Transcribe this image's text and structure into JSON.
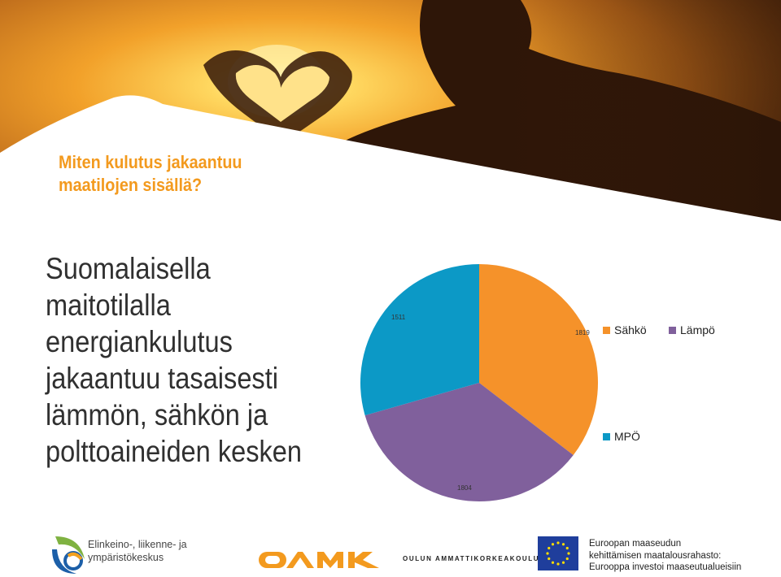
{
  "slide": {
    "heading": [
      "Miten kulutus jakaantuu",
      "maatilojen sisällä?"
    ],
    "body": [
      "Suomalaisella",
      "maitotilalla",
      "energiankulutus",
      "jakaantuu tasaisesti",
      "lämmön, sähkön ja",
      "polttoaineiden kesken"
    ]
  },
  "colors": {
    "accent": "#f39a1e",
    "sahko": "#f5922a",
    "lampo": "#80609c",
    "mpo": "#0c99c6"
  },
  "chart_data": {
    "type": "pie",
    "slices": [
      {
        "name": "Sähkö",
        "value": 1819,
        "color": "#f5922a"
      },
      {
        "name": "Lämpö",
        "value": 1804,
        "color": "#80609c"
      },
      {
        "name": "MPÖ",
        "value": 1511,
        "color": "#0c99c6"
      }
    ],
    "legend": [
      "Sähkö",
      "Lämpö",
      "MPÖ"
    ],
    "legend_position": "right"
  },
  "footer": {
    "ely_lines": [
      "Elinkeino-, liikenne- ja",
      "ympäristökeskus"
    ],
    "oamk_logo": "OAMK",
    "oamk_name": "OULUN AMMATTIKORKEAKOULU",
    "eu_lines": [
      "Euroopan maaseudun",
      "kehittämisen maatalousrahasto:",
      "Eurooppa investoi maaseutualueisiin"
    ]
  }
}
